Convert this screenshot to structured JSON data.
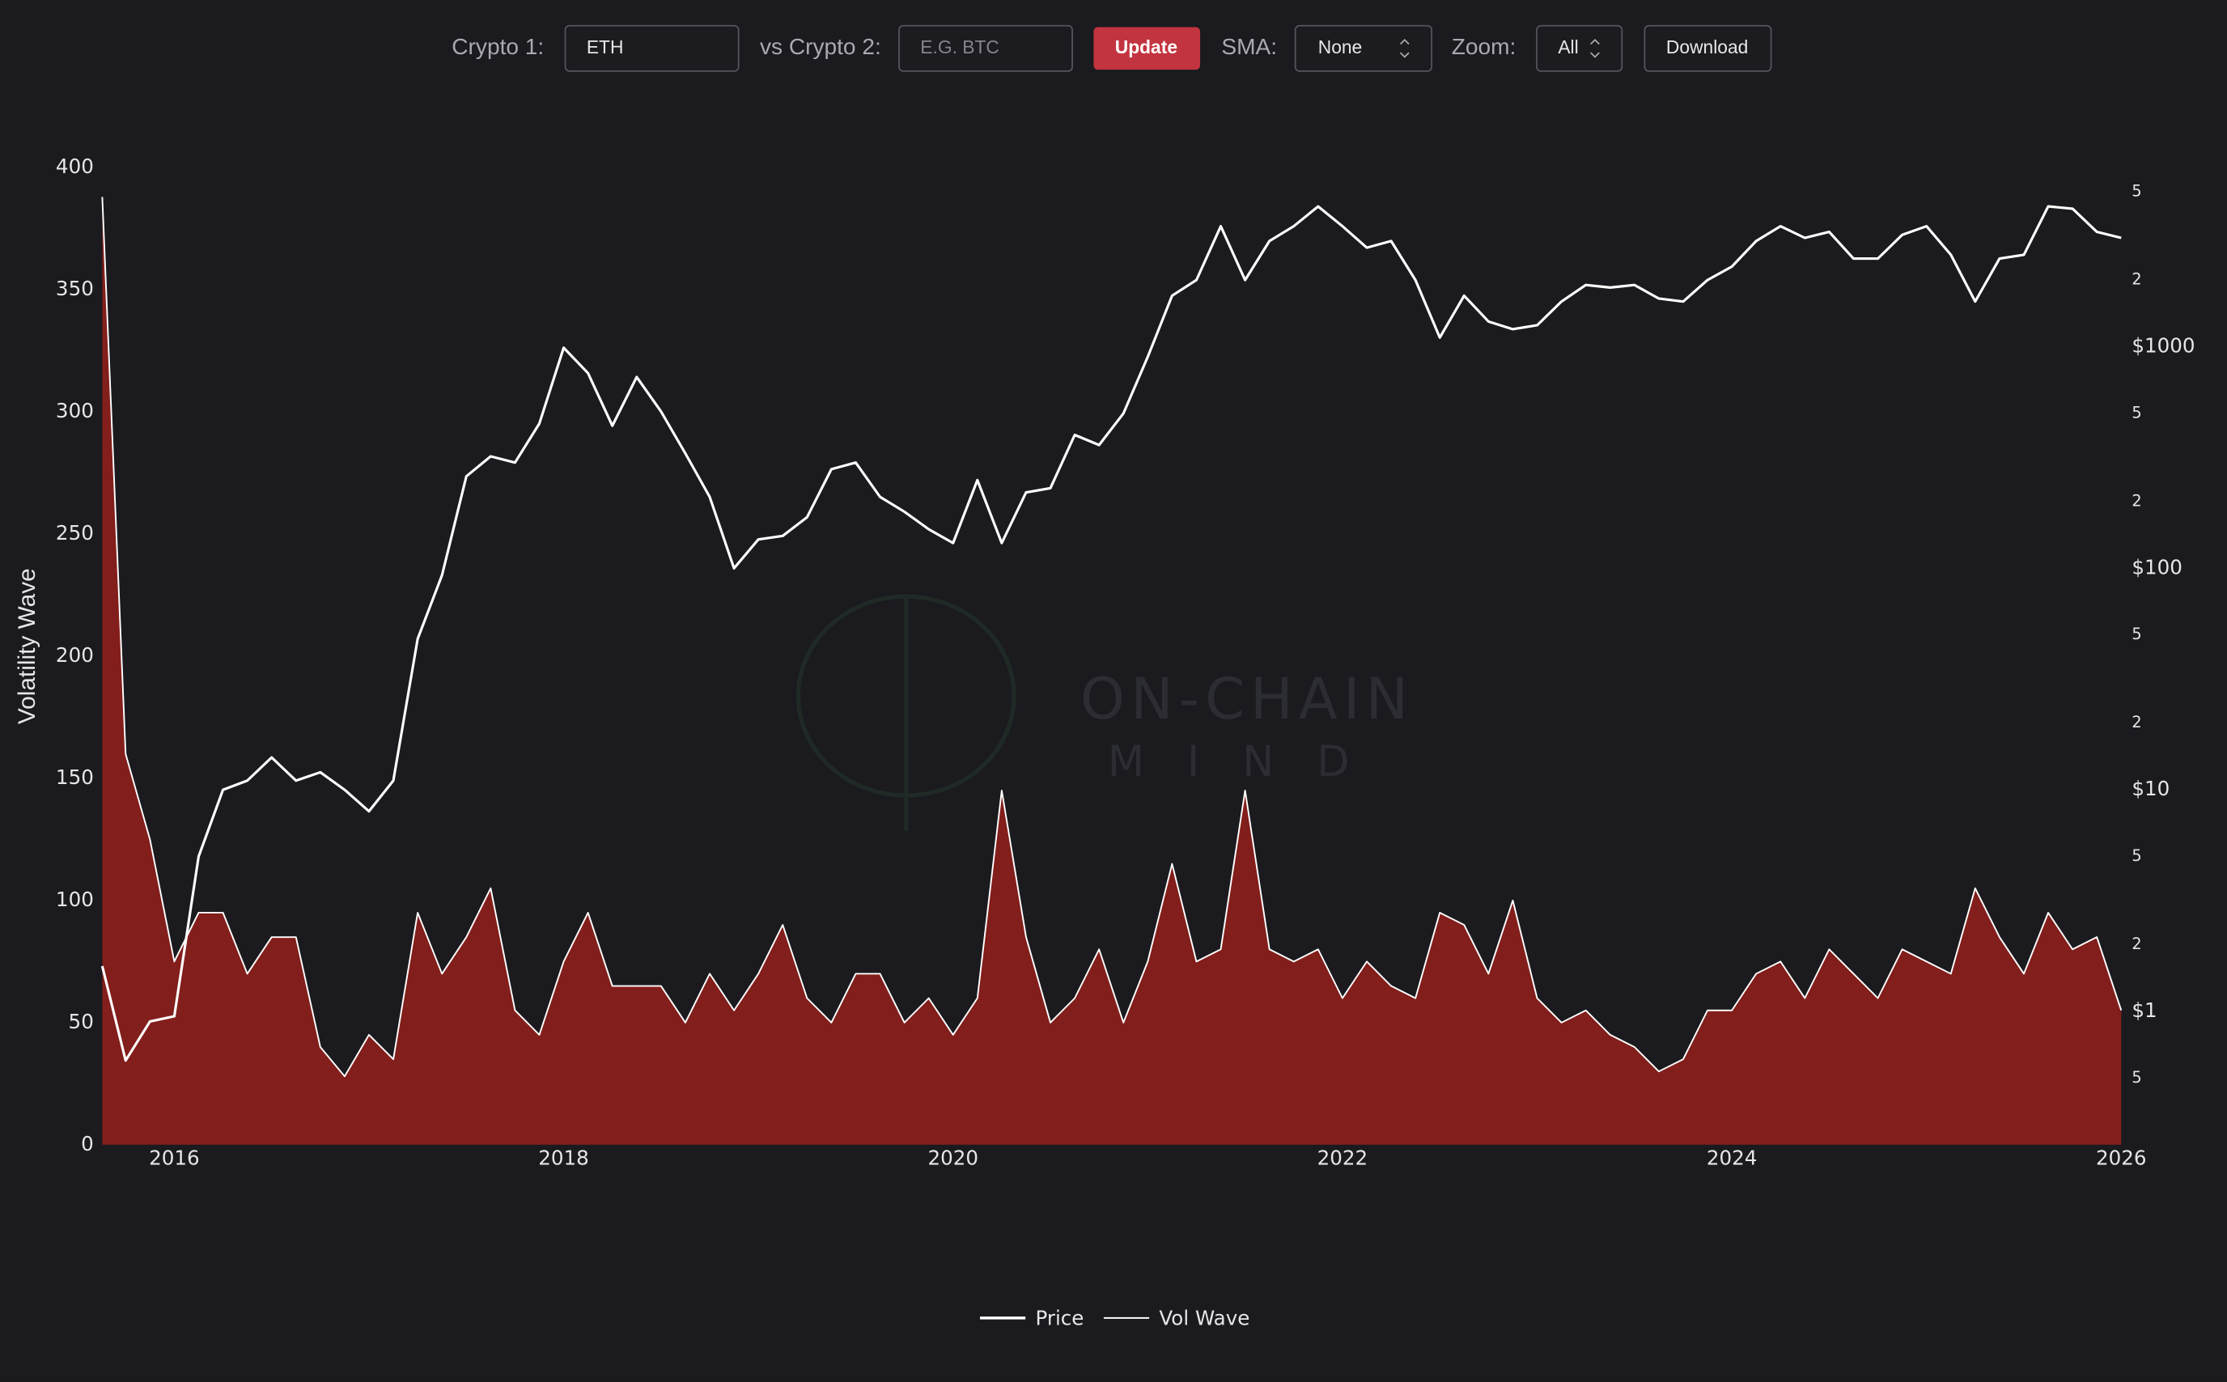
{
  "toolbar": {
    "crypto1_label": "Crypto 1:",
    "crypto1_value": "ETH",
    "crypto2_label": "vs Crypto 2:",
    "crypto2_placeholder": "E.G. BTC",
    "update": "Update",
    "sma_label": "SMA:",
    "sma_value": "None",
    "zoom_label": "Zoom:",
    "zoom_value": "All",
    "download": "Download"
  },
  "watermark": {
    "line1": "ON-CHAIN",
    "line2": "MIND"
  },
  "chart_data": {
    "type": "line",
    "y_label": "Volatility Wave",
    "x": [
      2015.63,
      2015.75,
      2015.875,
      2016.0,
      2016.125,
      2016.25,
      2016.375,
      2016.5,
      2016.625,
      2016.75,
      2016.875,
      2017.0,
      2017.125,
      2017.25,
      2017.375,
      2017.5,
      2017.625,
      2017.75,
      2017.875,
      2018.0,
      2018.125,
      2018.25,
      2018.375,
      2018.5,
      2018.625,
      2018.75,
      2018.875,
      2019.0,
      2019.125,
      2019.25,
      2019.375,
      2019.5,
      2019.625,
      2019.75,
      2019.875,
      2020.0,
      2020.125,
      2020.25,
      2020.375,
      2020.5,
      2020.625,
      2020.75,
      2020.875,
      2021.0,
      2021.125,
      2021.25,
      2021.375,
      2021.5,
      2021.625,
      2021.75,
      2021.875,
      2022.0,
      2022.125,
      2022.25,
      2022.375,
      2022.5,
      2022.625,
      2022.75,
      2022.875,
      2023.0,
      2023.125,
      2023.25,
      2023.375,
      2023.5,
      2023.625,
      2023.75,
      2023.875,
      2024.0,
      2024.125,
      2024.25,
      2024.375,
      2024.5,
      2024.625,
      2024.75,
      2024.875,
      2025.0,
      2025.125,
      2025.25,
      2025.375,
      2025.5,
      2025.625,
      2025.75,
      2025.875,
      2026.0
    ],
    "series": [
      {
        "name": "Price",
        "color": "#ffffff",
        "axis": "y2",
        "values": [
          1.6,
          0.6,
          0.9,
          0.95,
          5,
          10,
          11,
          14,
          11,
          12,
          10,
          8,
          11,
          48,
          93,
          260,
          320,
          300,
          450,
          990,
          760,
          440,
          730,
          510,
          330,
          210,
          100,
          135,
          140,
          170,
          280,
          300,
          210,
          180,
          150,
          130,
          250,
          130,
          220,
          230,
          400,
          360,
          500,
          900,
          1700,
          2000,
          3500,
          2000,
          3000,
          3500,
          4300,
          3500,
          2800,
          3000,
          2000,
          1100,
          1700,
          1300,
          1200,
          1250,
          1600,
          1900,
          1850,
          1900,
          1650,
          1600,
          2000,
          2300,
          3000,
          3500,
          3100,
          3300,
          2500,
          2500,
          3200,
          3500,
          2600,
          1600,
          2500,
          2600,
          4300,
          4200,
          3300,
          3100
        ]
      },
      {
        "name": "Vol Wave",
        "color": "#ffffff",
        "fill": "#8e1f1b",
        "values": [
          388,
          160,
          125,
          75,
          95,
          95,
          70,
          85,
          85,
          40,
          28,
          45,
          35,
          95,
          70,
          85,
          105,
          55,
          45,
          75,
          95,
          65,
          65,
          65,
          50,
          70,
          55,
          70,
          90,
          60,
          50,
          70,
          70,
          50,
          60,
          45,
          60,
          145,
          85,
          50,
          60,
          80,
          50,
          75,
          115,
          75,
          80,
          145,
          80,
          75,
          80,
          60,
          75,
          65,
          60,
          95,
          90,
          70,
          100,
          60,
          50,
          55,
          45,
          40,
          30,
          35,
          55,
          55,
          70,
          75,
          60,
          80,
          70,
          60,
          80,
          75,
          70,
          105,
          85,
          70,
          95,
          80,
          85,
          55
        ]
      }
    ],
    "xlim": [
      2015.63,
      2026.04
    ],
    "xticks": [
      2016,
      2018,
      2020,
      2022,
      2024,
      2026
    ],
    "ylim": [
      0,
      400
    ],
    "yticks": [
      0,
      50,
      100,
      150,
      200,
      250,
      300,
      350,
      400
    ],
    "y2lim": [
      0.25,
      6430
    ],
    "y2_log": true,
    "y2ticks": [
      {
        "value": 0.5,
        "label": "5"
      },
      {
        "value": 1,
        "label": "$1"
      },
      2,
      5,
      {
        "value": 10,
        "label": "$10"
      },
      {
        "value": 20,
        "label": "2"
      },
      {
        "value": 50,
        "label": "5"
      },
      {
        "value": 100,
        "label": "$100"
      },
      {
        "value": 200,
        "label": "2"
      },
      {
        "value": 500,
        "label": "5"
      },
      {
        "value": 1000,
        "label": "$1000"
      },
      {
        "value": 2000,
        "label": "2"
      },
      {
        "value": 5000,
        "label": "5"
      }
    ],
    "grid": false,
    "legend": "bottom"
  }
}
